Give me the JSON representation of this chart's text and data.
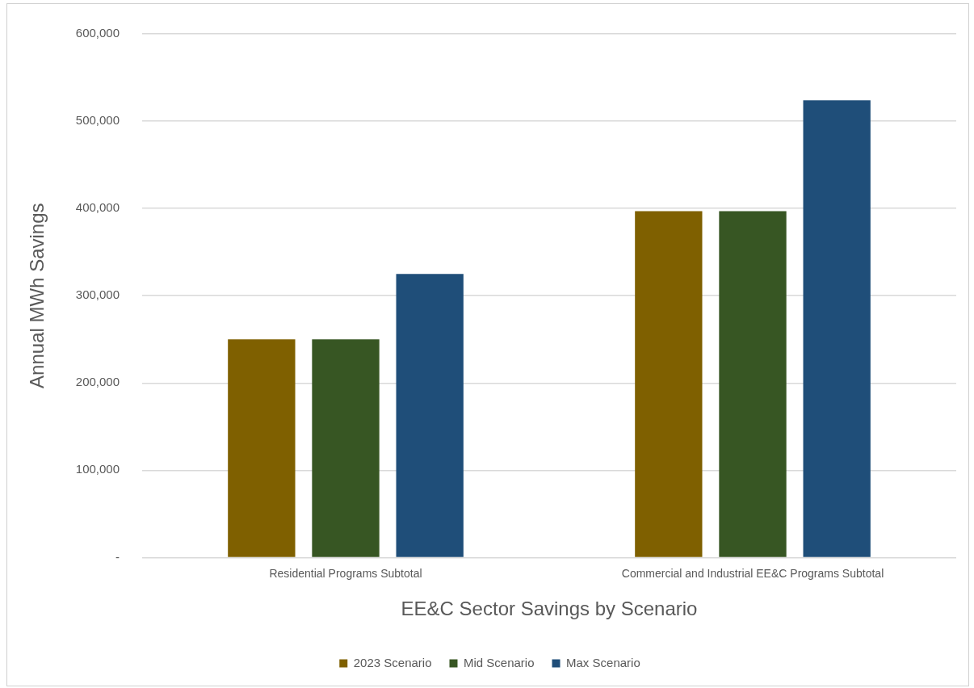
{
  "chart_data": {
    "type": "bar",
    "xlabel": "EE&C Sector Savings by Scenario",
    "ylabel": "Annual MWh Savings",
    "categories": [
      "Residential Programs Subtotal",
      "Commercial and Industrial EE&C Programs Subtotal"
    ],
    "series": [
      {
        "name": "2023 Scenario",
        "color": "#7f6000",
        "values": [
          250000,
          397000
        ]
      },
      {
        "name": "Mid Scenario",
        "color": "#375623",
        "values": [
          250000,
          397000
        ]
      },
      {
        "name": "Max Scenario",
        "color": "#1f4e79",
        "values": [
          325000,
          524000
        ]
      }
    ],
    "ylim": [
      0,
      600000
    ],
    "yticks": [
      {
        "value": 0,
        "label": "-"
      },
      {
        "value": 100000,
        "label": "100,000"
      },
      {
        "value": 200000,
        "label": "200,000"
      },
      {
        "value": 300000,
        "label": "300,000"
      },
      {
        "value": 400000,
        "label": "400,000"
      },
      {
        "value": 500000,
        "label": "500,000"
      },
      {
        "value": 600000,
        "label": "600,000"
      }
    ],
    "grid": "y",
    "legend": "bottom"
  }
}
